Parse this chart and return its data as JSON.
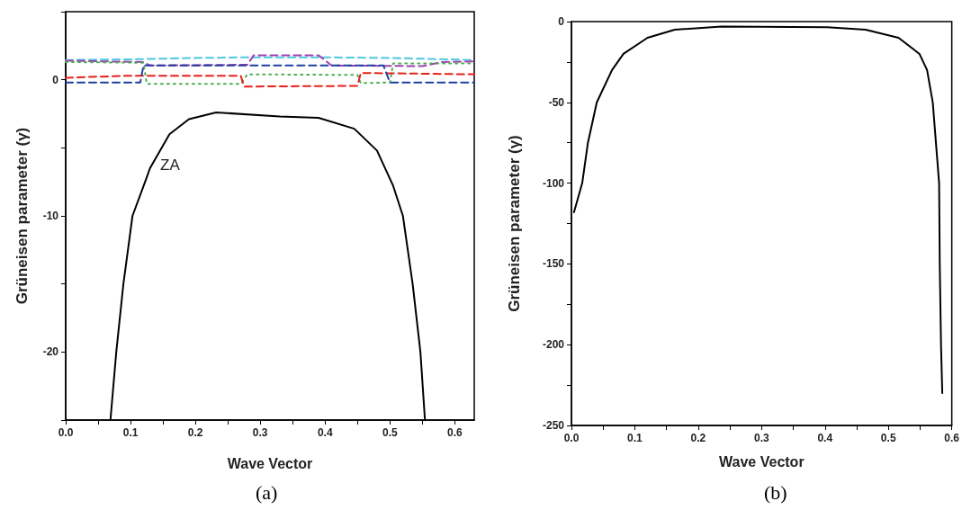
{
  "chart_data": [
    {
      "type": "line",
      "xlabel": "Wave Vector",
      "ylabel": "Grüneisen parameter (γ)",
      "xlim": [
        0,
        0.63
      ],
      "ylim": [
        -25,
        5
      ],
      "xticks": [
        {
          "value": 0,
          "label": "0.0"
        },
        {
          "value": 0.05,
          "label": null
        },
        {
          "value": 0.1,
          "label": "0.1"
        },
        {
          "value": 0.15,
          "label": null
        },
        {
          "value": 0.2,
          "label": "0.2"
        },
        {
          "value": 0.25,
          "label": null
        },
        {
          "value": 0.3,
          "label": "0.3"
        },
        {
          "value": 0.35,
          "label": null
        },
        {
          "value": 0.4,
          "label": "0.4"
        },
        {
          "value": 0.45,
          "label": null
        },
        {
          "value": 0.5,
          "label": "0.5"
        },
        {
          "value": 0.55,
          "label": null
        },
        {
          "value": 0.6,
          "label": "0.6"
        }
      ],
      "yticks": [
        {
          "value": -25,
          "label": null
        },
        -20,
        {
          "value": -15,
          "label": null
        },
        -10,
        {
          "value": -5,
          "label": null
        },
        0,
        {
          "value": 5,
          "label": null
        }
      ],
      "grid": false,
      "marker": "none",
      "annotations": [
        "ZA",
        "(a)"
      ],
      "series": [
        {
          "color": "#000000",
          "line_style": "solid",
          "x": [
            0.069,
            0.078,
            0.089,
            0.103,
            0.124,
            0.13,
            0.16,
            0.19,
            0.232,
            0.33,
            0.39,
            0.445,
            0.48,
            0.505,
            0.52,
            0.535,
            0.547,
            0.554
          ],
          "values": [
            -25,
            -20,
            -15,
            -10,
            -7.3,
            -6.5,
            -4,
            -2.9,
            -2.4,
            -2.7,
            -2.8,
            -3.6,
            -5.2,
            -7.8,
            -10,
            -15,
            -20,
            -25
          ]
        },
        {
          "color": "#4fc8e0",
          "line_style": "dashed",
          "x": [
            0,
            0.1,
            0.2,
            0.28,
            0.4,
            0.5,
            0.63
          ],
          "values": [
            1.45,
            1.5,
            1.6,
            1.65,
            1.65,
            1.6,
            1.45
          ]
        },
        {
          "color": "#a040b0",
          "line_style": "dashed",
          "x": [
            0,
            0.12,
            0.13,
            0.28,
            0.29,
            0.39,
            0.41,
            0.55,
            0.58,
            0.63
          ],
          "values": [
            1.4,
            1.3,
            1.05,
            1.1,
            1.8,
            1.8,
            1.05,
            1.0,
            1.3,
            1.35
          ]
        },
        {
          "color": "#4caf50",
          "line_style": "dotted",
          "x": [
            0,
            0.12,
            0.125,
            0.27,
            0.28,
            0.45,
            0.455,
            0.5,
            0.505,
            0.63
          ],
          "values": [
            1.3,
            1.25,
            -0.3,
            -0.3,
            0.4,
            0.35,
            -0.25,
            -0.2,
            1.2,
            1.2
          ]
        },
        {
          "color": "#e8201a",
          "line_style": "dashed",
          "x": [
            0,
            0.1,
            0.27,
            0.275,
            0.45,
            0.455,
            0.63
          ],
          "values": [
            0.15,
            0.3,
            0.3,
            -0.5,
            -0.45,
            0.5,
            0.4
          ]
        },
        {
          "color": "#2040a0",
          "line_style": "dashed",
          "x": [
            0,
            0.115,
            0.12,
            0.49,
            0.5,
            0.63
          ],
          "values": [
            -0.2,
            -0.2,
            1.05,
            1.05,
            -0.2,
            -0.2
          ]
        }
      ]
    },
    {
      "type": "line",
      "xlabel": "Wave Vector",
      "ylabel": "Grüneisen parameter (γ)",
      "xlim": [
        0,
        0.6
      ],
      "ylim": [
        -250,
        0
      ],
      "xticks": [
        {
          "value": 0,
          "label": "0.0"
        },
        {
          "value": 0.05,
          "label": null
        },
        {
          "value": 0.1,
          "label": "0.1"
        },
        {
          "value": 0.15,
          "label": null
        },
        {
          "value": 0.2,
          "label": "0.2"
        },
        {
          "value": 0.25,
          "label": null
        },
        {
          "value": 0.3,
          "label": "0.3"
        },
        {
          "value": 0.35,
          "label": null
        },
        {
          "value": 0.4,
          "label": "0.4"
        },
        {
          "value": 0.45,
          "label": null
        },
        {
          "value": 0.5,
          "label": "0.5"
        },
        {
          "value": 0.55,
          "label": null
        },
        {
          "value": 0.6,
          "label": "0.6"
        }
      ],
      "yticks": [
        -250,
        {
          "value": -225,
          "label": null
        },
        -200,
        {
          "value": -175,
          "label": null
        },
        -150,
        {
          "value": -125,
          "label": null
        },
        -100,
        {
          "value": -75,
          "label": null
        },
        -50,
        {
          "value": -25,
          "label": null
        },
        0
      ],
      "grid": false,
      "marker": "none",
      "annotations": [
        "(b)"
      ],
      "series": [
        {
          "color": "#000000",
          "line_style": "solid",
          "x": [
            0.004,
            0.017,
            0.026,
            0.04,
            0.064,
            0.082,
            0.12,
            0.163,
            0.237,
            0.403,
            0.464,
            0.516,
            0.549,
            0.561,
            0.57,
            0.58,
            0.581,
            0.583,
            0.585
          ],
          "values": [
            -118,
            -100,
            -75,
            -50,
            -30,
            -20,
            -10,
            -5,
            -3,
            -3.5,
            -5,
            -10,
            -20,
            -30,
            -50,
            -100,
            -150,
            -200,
            -230
          ]
        }
      ]
    }
  ]
}
